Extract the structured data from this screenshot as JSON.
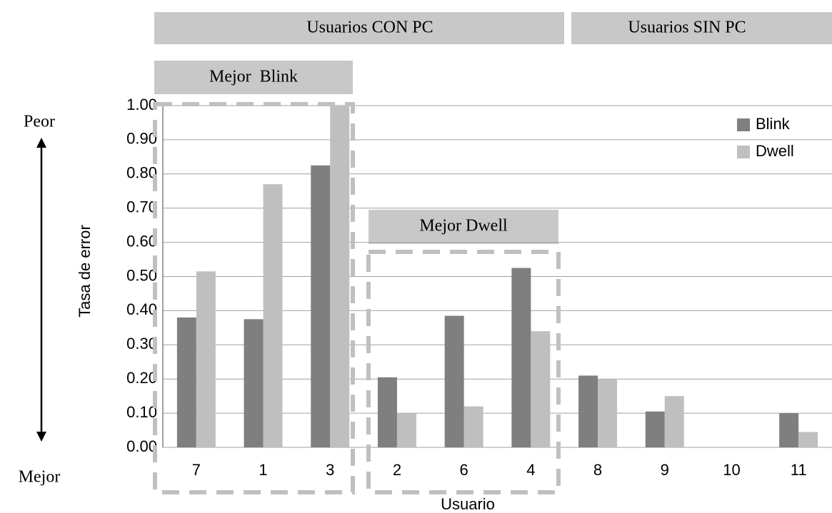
{
  "chart_data": {
    "type": "bar",
    "x_label": "Usuario",
    "y_label": "Tasa de error",
    "categories": [
      "7",
      "1",
      "3",
      "2",
      "6",
      "4",
      "8",
      "9",
      "10",
      "11"
    ],
    "series": [
      {
        "name": "Blink",
        "color": "#7f7f80",
        "values": [
          0.38,
          0.375,
          0.825,
          0.205,
          0.385,
          0.525,
          0.21,
          0.105,
          0,
          0.1
        ]
      },
      {
        "name": "Dwell",
        "color": "#bfbfc0",
        "values": [
          0.515,
          0.77,
          1.0,
          0.1,
          0.12,
          0.34,
          0.2,
          0.15,
          0,
          0.045
        ]
      }
    ],
    "ylim": [
      0,
      1
    ],
    "yticks": [
      {
        "value": 0,
        "label": "0.00"
      },
      {
        "value": 0.1,
        "label": "0.10"
      },
      {
        "value": 0.2,
        "label": "0.20"
      },
      {
        "value": 0.3,
        "label": "0.30"
      },
      {
        "value": 0.4,
        "label": "0.40"
      },
      {
        "value": 0.5,
        "label": "0.50"
      },
      {
        "value": 0.6,
        "label": "0.60"
      },
      {
        "value": 0.7,
        "label": "0.70"
      },
      {
        "value": 0.8,
        "label": "0.80"
      },
      {
        "value": 0.9,
        "label": "0.90"
      },
      {
        "value": 1,
        "label": "1.00"
      }
    ],
    "grid": true,
    "legend": "upper right",
    "annotations": [
      "Usuarios CON PC",
      "Usuarios SIN PC",
      "Mejor  Blink",
      "Mejor Dwell",
      "Peor",
      "Mejor"
    ]
  }
}
